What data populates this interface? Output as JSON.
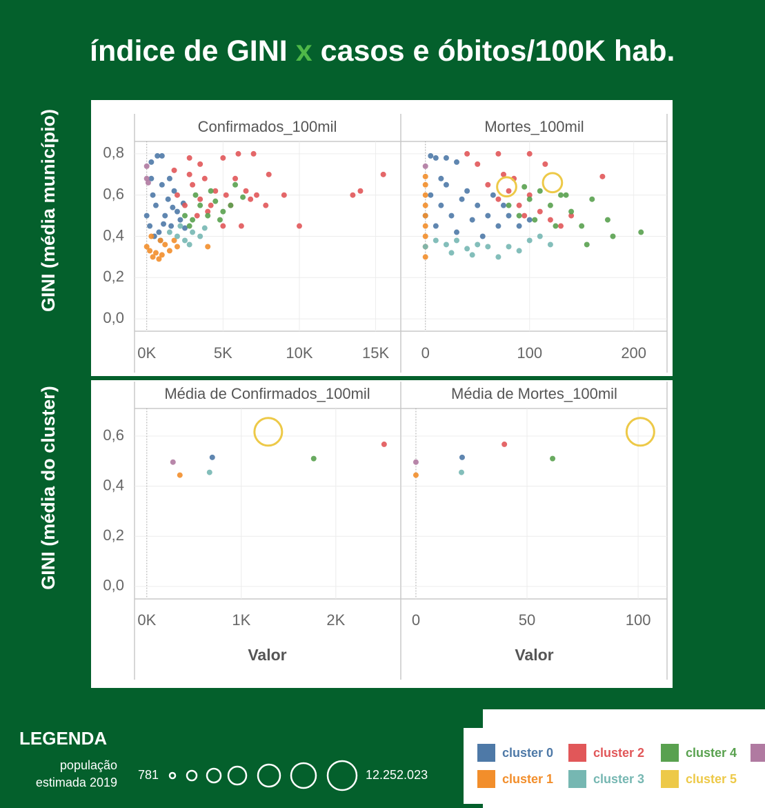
{
  "title_parts": [
    "índice de GINI",
    "x",
    "casos e óbitos/100K hab."
  ],
  "legend": {
    "title": "LEGENDA",
    "size_title": "população estimada 2019",
    "min": 781,
    "max": 12252023,
    "max_label": "12.252.023"
  },
  "chart_data": [
    {
      "type": "scatter",
      "title": "Confirmados_100mil",
      "ylabel": "GINI (média município)",
      "xlim": [
        -800,
        16600
      ],
      "ylim": [
        -0.06,
        0.86
      ],
      "xticks": [
        {
          "value": 0,
          "label": "0K"
        },
        {
          "value": 5000,
          "label": "5K"
        },
        {
          "value": 10000,
          "label": "10K"
        },
        {
          "value": 15000,
          "label": "15K"
        }
      ],
      "yticks": [
        {
          "value": 0,
          "label": "0,0"
        },
        {
          "value": 0.2,
          "label": "0,2"
        },
        {
          "value": 0.4,
          "label": "0,4"
        },
        {
          "value": 0.6,
          "label": "0,6"
        },
        {
          "value": 0.8,
          "label": "0,8"
        }
      ],
      "series": [
        {
          "name": "cluster 0",
          "color": "#4e79a7",
          "x": [
            0,
            200,
            400,
            600,
            800,
            1000,
            1200,
            1400,
            1600,
            1800,
            2000,
            2200,
            2400,
            300,
            900,
            1500,
            500,
            1100,
            1700,
            2500,
            700,
            1000,
            300
          ],
          "values": [
            0.5,
            0.45,
            0.6,
            0.55,
            0.42,
            0.65,
            0.5,
            0.58,
            0.45,
            0.62,
            0.52,
            0.48,
            0.56,
            0.68,
            0.38,
            0.68,
            0.4,
            0.46,
            0.54,
            0.44,
            0.79,
            0.79,
            0.76
          ]
        },
        {
          "name": "cluster 1",
          "color": "#f28e2b",
          "x": [
            0,
            200,
            400,
            600,
            800,
            1000,
            1200,
            1500,
            1800,
            2000,
            4000,
            300,
            900
          ],
          "values": [
            0.35,
            0.33,
            0.3,
            0.32,
            0.29,
            0.31,
            0.36,
            0.33,
            0.38,
            0.35,
            0.35,
            0.4,
            0.38
          ]
        },
        {
          "name": "cluster 2",
          "color": "#e15759",
          "x": [
            2000,
            2500,
            3000,
            3500,
            4000,
            4500,
            2800,
            3800,
            4200,
            3300,
            1800,
            5200,
            5500,
            6500,
            6800,
            7200,
            5000,
            6000,
            7000,
            5000,
            8000,
            9000,
            10000,
            13500,
            14000,
            15500,
            6200,
            7800,
            5800,
            3500,
            2800
          ],
          "values": [
            0.6,
            0.55,
            0.65,
            0.58,
            0.52,
            0.62,
            0.7,
            0.68,
            0.55,
            0.5,
            0.72,
            0.6,
            0.55,
            0.62,
            0.58,
            0.6,
            0.45,
            0.8,
            0.8,
            0.78,
            0.7,
            0.6,
            0.45,
            0.6,
            0.62,
            0.7,
            0.45,
            0.55,
            0.68,
            0.75,
            0.78
          ]
        },
        {
          "name": "cluster 3",
          "color": "#76b7b2",
          "x": [
            2000,
            2500,
            3000,
            3500,
            2200,
            2800,
            3800,
            1500
          ],
          "values": [
            0.4,
            0.38,
            0.42,
            0.4,
            0.45,
            0.36,
            0.44,
            0.42
          ]
        },
        {
          "name": "cluster 4",
          "color": "#59a14f",
          "x": [
            2500,
            3000,
            3500,
            4000,
            4500,
            5000,
            5500,
            3200,
            4200,
            2800,
            4800,
            5800,
            6300
          ],
          "values": [
            0.5,
            0.48,
            0.55,
            0.5,
            0.57,
            0.52,
            0.55,
            0.6,
            0.62,
            0.45,
            0.48,
            0.65,
            0.59
          ]
        },
        {
          "name": null,
          "color": "#b07aa1",
          "x": [
            0,
            0,
            100
          ],
          "values": [
            0.74,
            0.68,
            0.66
          ]
        }
      ]
    },
    {
      "type": "scatter",
      "title": "Mortes_100mil",
      "xlim": [
        -23,
        232
      ],
      "ylim": [
        -0.06,
        0.86
      ],
      "xticks": [
        0,
        100,
        200
      ],
      "series": [
        {
          "name": "cluster 0",
          "color": "#4e79a7",
          "x": [
            0,
            5,
            10,
            15,
            20,
            25,
            30,
            35,
            40,
            45,
            50,
            55,
            60,
            65,
            70,
            75,
            80,
            90,
            100,
            5,
            10,
            20,
            30,
            15
          ],
          "values": [
            0.5,
            0.6,
            0.45,
            0.55,
            0.65,
            0.5,
            0.42,
            0.58,
            0.62,
            0.48,
            0.55,
            0.4,
            0.5,
            0.6,
            0.45,
            0.55,
            0.5,
            0.45,
            0.48,
            0.79,
            0.78,
            0.78,
            0.76,
            0.68
          ]
        },
        {
          "name": "cluster 1",
          "color": "#f28e2b",
          "x": [
            0,
            0,
            0,
            0,
            0,
            0,
            0,
            0,
            0
          ],
          "values": [
            0.3,
            0.35,
            0.4,
            0.45,
            0.5,
            0.55,
            0.6,
            0.65,
            0.69
          ]
        },
        {
          "name": "cluster 2",
          "color": "#e15759",
          "x": [
            60,
            70,
            80,
            90,
            100,
            75,
            85,
            110,
            120,
            50,
            40,
            70,
            100,
            115,
            170,
            130,
            140,
            95
          ],
          "values": [
            0.65,
            0.58,
            0.62,
            0.55,
            0.6,
            0.7,
            0.68,
            0.52,
            0.48,
            0.75,
            0.8,
            0.8,
            0.8,
            0.75,
            0.69,
            0.45,
            0.5,
            0.5
          ]
        },
        {
          "name": "cluster 3",
          "color": "#76b7b2",
          "x": [
            0,
            10,
            20,
            30,
            40,
            50,
            60,
            70,
            80,
            90,
            100,
            45,
            25,
            110,
            120
          ],
          "values": [
            0.35,
            0.38,
            0.36,
            0.38,
            0.34,
            0.36,
            0.35,
            0.3,
            0.35,
            0.33,
            0.38,
            0.31,
            0.32,
            0.4,
            0.36
          ]
        },
        {
          "name": "cluster 4",
          "color": "#59a14f",
          "x": [
            80,
            90,
            100,
            110,
            120,
            130,
            140,
            150,
            175,
            180,
            207,
            155,
            125,
            105,
            160,
            95,
            135
          ],
          "values": [
            0.55,
            0.5,
            0.58,
            0.62,
            0.55,
            0.6,
            0.52,
            0.45,
            0.48,
            0.4,
            0.42,
            0.36,
            0.45,
            0.48,
            0.58,
            0.64,
            0.6
          ]
        },
        {
          "name": "cluster 5",
          "color": "#edc948",
          "x": [
            78,
            122
          ],
          "values": [
            0.64,
            0.66
          ],
          "sizes": [
            5000000,
            5000000
          ]
        },
        {
          "name": null,
          "color": "#b07aa1",
          "x": [
            0
          ],
          "values": [
            0.74
          ]
        }
      ]
    },
    {
      "type": "scatter",
      "title": "Média de Confirmados_100mil",
      "ylabel": "GINI (média do cluster)",
      "xlabel": "Valor",
      "xlim": [
        -130,
        2680
      ],
      "ylim": [
        -0.05,
        0.71
      ],
      "xticks": [
        {
          "value": 0,
          "label": "0K"
        },
        {
          "value": 1000,
          "label": "1K"
        },
        {
          "value": 2000,
          "label": "2K"
        }
      ],
      "yticks": [
        {
          "value": 0,
          "label": "0,0"
        },
        {
          "value": 0.2,
          "label": "0,2"
        },
        {
          "value": 0.4,
          "label": "0,4"
        },
        {
          "value": 0.6,
          "label": "0,6"
        }
      ],
      "series": [
        {
          "name": "cluster 0",
          "color": "#4e79a7",
          "x": [
            693
          ],
          "values": [
            0.515
          ]
        },
        {
          "name": "cluster 1",
          "color": "#f28e2b",
          "x": [
            350
          ],
          "values": [
            0.444
          ]
        },
        {
          "name": "cluster 2",
          "color": "#e15759",
          "x": [
            2511
          ],
          "values": [
            0.567
          ]
        },
        {
          "name": "cluster 3",
          "color": "#76b7b2",
          "x": [
            664
          ],
          "values": [
            0.455
          ]
        },
        {
          "name": "cluster 4",
          "color": "#59a14f",
          "x": [
            1766
          ],
          "values": [
            0.51
          ]
        },
        {
          "name": "cluster 5",
          "color": "#edc948",
          "x": [
            1285
          ],
          "values": [
            0.617
          ],
          "sizes": [
            12252023
          ]
        },
        {
          "name": null,
          "color": "#b07aa1",
          "x": [
            277
          ],
          "values": [
            0.496
          ]
        }
      ]
    },
    {
      "type": "scatter",
      "title": "Média de Mortes_100mil",
      "xlabel": "Valor",
      "xlim": [
        -6.5,
        113
      ],
      "ylim": [
        -0.05,
        0.71
      ],
      "xticks": [
        0,
        50,
        100
      ],
      "series": [
        {
          "name": "cluster 0",
          "color": "#4e79a7",
          "x": [
            20.8
          ],
          "values": [
            0.515
          ]
        },
        {
          "name": "cluster 1",
          "color": "#f28e2b",
          "x": [
            0
          ],
          "values": [
            0.444
          ]
        },
        {
          "name": "cluster 2",
          "color": "#e15759",
          "x": [
            39.8
          ],
          "values": [
            0.567
          ]
        },
        {
          "name": "cluster 3",
          "color": "#76b7b2",
          "x": [
            20.5
          ],
          "values": [
            0.455
          ]
        },
        {
          "name": "cluster 4",
          "color": "#59a14f",
          "x": [
            61.5
          ],
          "values": [
            0.51
          ]
        },
        {
          "name": "cluster 5",
          "color": "#edc948",
          "x": [
            101
          ],
          "values": [
            0.617
          ],
          "sizes": [
            12252023
          ]
        },
        {
          "name": null,
          "color": "#b07aa1",
          "x": [
            0
          ],
          "values": [
            0.496
          ]
        }
      ]
    }
  ]
}
